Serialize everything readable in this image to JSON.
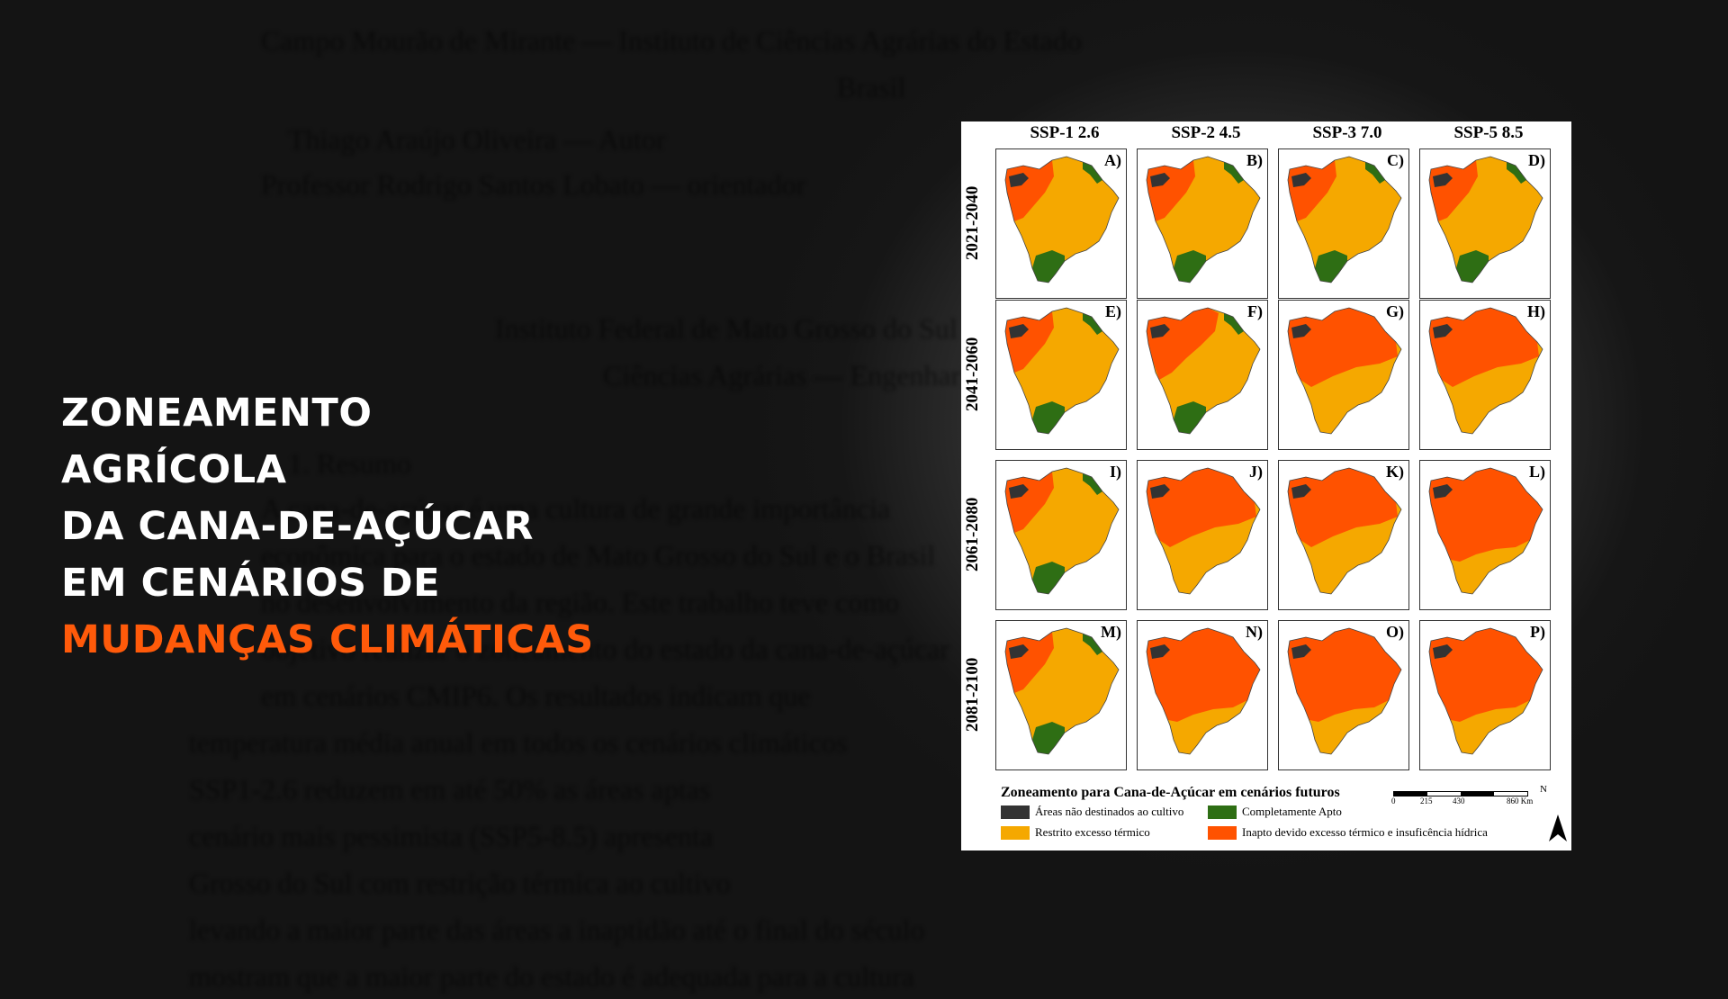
{
  "headline": {
    "line1": "ZONEAMENTO",
    "line2": "AGRÍCOLA",
    "line3": "DA CANA-DE-AÇÚCAR",
    "line4": "EM CENÁRIOS DE",
    "line5": "MUDANÇAS CLIMÁTICAS"
  },
  "colors": {
    "background": "#141414",
    "accent": "#ff5a0a",
    "non_cultivated": "#333333",
    "apt": "#2e6e14",
    "thermal_restricted": "#f5a800",
    "inapt": "#ff5200"
  },
  "figure": {
    "columns": [
      "SSP-1 2.6",
      "SSP-2 4.5",
      "SSP-3 7.0",
      "SSP-5 8.5"
    ],
    "rows": [
      "2021-2040",
      "2041-2060",
      "2061-2080",
      "2081-2100"
    ],
    "panel_labels": [
      "A)",
      "B)",
      "C)",
      "D)",
      "E)",
      "F)",
      "G)",
      "H)",
      "I)",
      "J)",
      "K)",
      "L)",
      "M)",
      "N)",
      "O)",
      "P)"
    ],
    "legend": {
      "title": "Zoneamento para Cana-de-Açúcar em cenários futuros",
      "items": [
        "Áreas não destinados ao cultivo",
        "Completamente Apto",
        "Restrito excesso térmico",
        "Inapto devido excesso térmico e insuficência hídrica"
      ]
    },
    "scale": {
      "ticks": [
        "0",
        "215",
        "430",
        "860 Km"
      ],
      "north": "N"
    }
  }
}
